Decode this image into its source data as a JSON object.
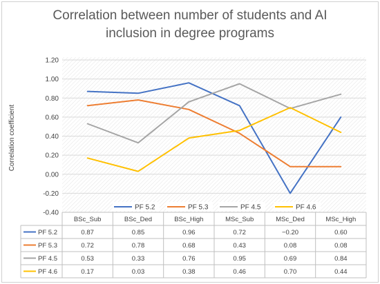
{
  "chart_data": {
    "type": "line",
    "title": "Correlation between number of students and AI inclusion in degree programs",
    "xlabel": "",
    "ylabel": "Correlation coefficient",
    "ylim": [
      -0.4,
      1.2
    ],
    "yticks": [
      "1.20",
      "1.00",
      "0.80",
      "0.60",
      "0.40",
      "0.20",
      "0.00",
      "-0.20",
      "-0.40"
    ],
    "categories": [
      "BSc_Sub",
      "BSc_Ded",
      "BSc_High",
      "MSc_Sub",
      "MSc_Ded",
      "MSc_High"
    ],
    "grid": true,
    "legend_position": "bottom",
    "data_table": true,
    "series": [
      {
        "name": "PF 5.2",
        "color": "#4472c4",
        "values": [
          0.87,
          0.85,
          0.96,
          0.72,
          -0.2,
          0.6
        ],
        "labels": [
          "0.87",
          "0.85",
          "0.96",
          "0.72",
          "−0.20",
          "0.60"
        ]
      },
      {
        "name": "PF 5.3",
        "color": "#ed7d31",
        "values": [
          0.72,
          0.78,
          0.68,
          0.43,
          0.08,
          0.08
        ],
        "labels": [
          "0.72",
          "0.78",
          "0.68",
          "0.43",
          "0.08",
          "0.08"
        ]
      },
      {
        "name": "PF 4.5",
        "color": "#a5a5a5",
        "values": [
          0.53,
          0.33,
          0.76,
          0.95,
          0.69,
          0.84
        ],
        "labels": [
          "0.53",
          "0.33",
          "0.76",
          "0.95",
          "0.69",
          "0.84"
        ]
      },
      {
        "name": "PF 4.6",
        "color": "#ffc000",
        "values": [
          0.17,
          0.03,
          0.38,
          0.46,
          0.7,
          0.44
        ],
        "labels": [
          "0.17",
          "0.03",
          "0.38",
          "0.46",
          "0.70",
          "0.44"
        ]
      }
    ]
  }
}
